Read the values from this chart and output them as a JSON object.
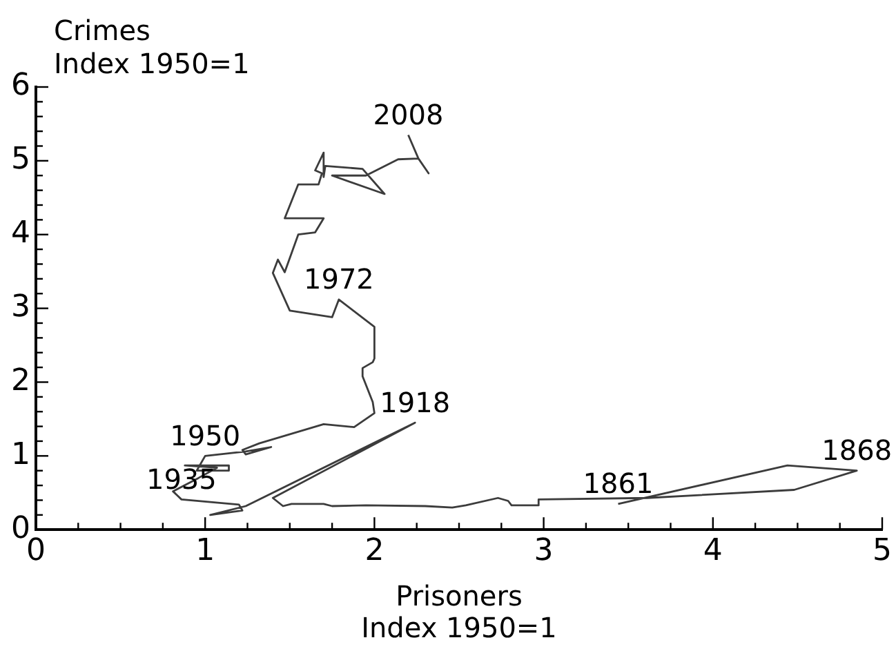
{
  "chart_data": {
    "type": "line",
    "xlabel": "Prisoners\nIndex 1950=1",
    "ylabel": "Crimes\nIndex 1950=1",
    "series": [
      {
        "color": "#3c3c3c",
        "x": [
          3.44,
          4.44,
          4.85,
          4.48,
          3.61,
          2.97,
          2.97,
          2.81,
          2.79,
          2.73,
          2.54,
          2.46,
          2.3,
          1.95,
          1.75,
          1.7,
          1.59,
          1.51,
          1.46,
          1.4,
          2.24,
          1.24,
          1.03,
          1.22,
          1.2,
          0.86,
          0.81,
          0.96,
          1.07,
          0.88,
          1.14,
          1.14,
          0.95,
          1.0,
          1.24,
          1.39,
          1.24,
          1.22,
          1.32,
          1.7,
          1.88,
          2.0,
          1.99,
          1.93,
          1.93,
          1.99,
          2.0,
          2.0,
          1.79,
          1.75,
          1.5,
          1.4,
          1.43,
          1.47,
          1.55,
          1.65,
          1.7,
          1.47,
          1.55,
          1.67,
          1.69,
          1.65,
          1.7,
          1.7,
          1.71,
          1.93,
          2.06,
          1.75,
          1.95,
          2.14,
          2.26,
          2.32,
          2.26,
          2.2
        ],
        "values": [
          0.35,
          0.87,
          0.8,
          0.54,
          0.43,
          0.41,
          0.33,
          0.33,
          0.39,
          0.43,
          0.33,
          0.3,
          0.32,
          0.33,
          0.32,
          0.35,
          0.35,
          0.35,
          0.32,
          0.43,
          1.45,
          0.32,
          0.2,
          0.26,
          0.34,
          0.41,
          0.52,
          0.7,
          0.84,
          0.87,
          0.87,
          0.8,
          0.8,
          1.0,
          1.06,
          1.12,
          1.02,
          1.08,
          1.17,
          1.43,
          1.39,
          1.58,
          1.73,
          2.08,
          2.19,
          2.27,
          2.32,
          2.75,
          3.12,
          2.88,
          2.97,
          3.48,
          3.66,
          3.49,
          4.0,
          4.03,
          4.22,
          4.22,
          4.68,
          4.68,
          4.83,
          4.87,
          5.11,
          4.78,
          4.93,
          4.89,
          4.55,
          4.8,
          4.8,
          5.02,
          5.03,
          4.83,
          5.03,
          5.35
        ]
      }
    ],
    "xlim": [
      0,
      5
    ],
    "ylim": [
      0,
      6
    ],
    "xticks": [
      0,
      {
        "value": 0.25,
        "label": null
      },
      {
        "value": 0.5,
        "label": null
      },
      {
        "value": 0.75,
        "label": null
      },
      1,
      {
        "value": 1.25,
        "label": null
      },
      {
        "value": 1.5,
        "label": null
      },
      {
        "value": 1.75,
        "label": null
      },
      2,
      {
        "value": 2.25,
        "label": null
      },
      {
        "value": 2.5,
        "label": null
      },
      {
        "value": 2.75,
        "label": null
      },
      3,
      {
        "value": 3.25,
        "label": null
      },
      {
        "value": 3.5,
        "label": null
      },
      {
        "value": 3.75,
        "label": null
      },
      4,
      {
        "value": 4.25,
        "label": null
      },
      {
        "value": 4.5,
        "label": null
      },
      {
        "value": 4.75,
        "label": null
      },
      5
    ],
    "yticks": [
      0,
      {
        "value": 0.2,
        "label": null
      },
      {
        "value": 0.4,
        "label": null
      },
      {
        "value": 0.6,
        "label": null
      },
      {
        "value": 0.8,
        "label": null
      },
      1,
      {
        "value": 1.2,
        "label": null
      },
      {
        "value": 1.4,
        "label": null
      },
      {
        "value": 1.6,
        "label": null
      },
      {
        "value": 1.8,
        "label": null
      },
      2,
      {
        "value": 2.2,
        "label": null
      },
      {
        "value": 2.4,
        "label": null
      },
      {
        "value": 2.6,
        "label": null
      },
      {
        "value": 2.8,
        "label": null
      },
      3,
      {
        "value": 3.2,
        "label": null
      },
      {
        "value": 3.4,
        "label": null
      },
      {
        "value": 3.6,
        "label": null
      },
      {
        "value": 3.8,
        "label": null
      },
      4,
      {
        "value": 4.2,
        "label": null
      },
      {
        "value": 4.4,
        "label": null
      },
      {
        "value": 4.6,
        "label": null
      },
      {
        "value": 4.8,
        "label": null
      },
      5,
      {
        "value": 5.2,
        "label": null
      },
      {
        "value": 5.4,
        "label": null
      },
      {
        "value": 5.6,
        "label": null
      },
      {
        "value": 5.8,
        "label": null
      },
      6
    ],
    "marker": "none",
    "line_style": "solid",
    "annotations": [
      {
        "text": "2008",
        "x": 2.2,
        "y": 5.35
      },
      {
        "text": "1972",
        "x": 1.79,
        "y": 3.12
      },
      {
        "text": "1918",
        "x": 2.24,
        "y": 1.45
      },
      {
        "text": "1950",
        "x": 1.0,
        "y": 1.0
      },
      {
        "text": "1935",
        "x": 0.86,
        "y": 0.41
      },
      {
        "text": "1861",
        "x": 3.44,
        "y": 0.35
      },
      {
        "text": "1868",
        "x": 4.85,
        "y": 0.8
      }
    ]
  }
}
